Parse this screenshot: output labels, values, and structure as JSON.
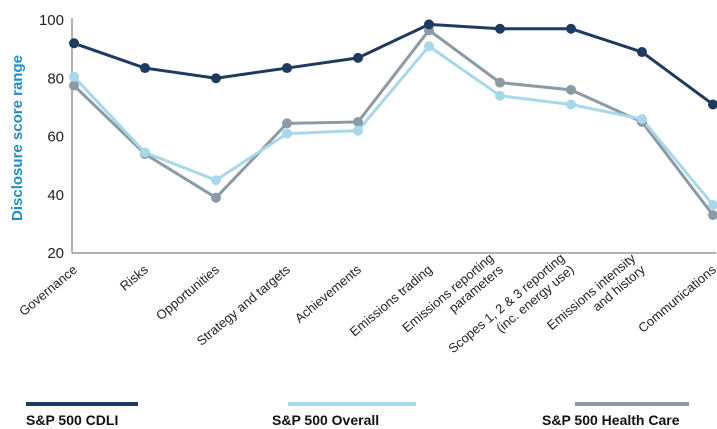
{
  "chart_data": {
    "type": "line",
    "ylabel": "Disclosure score range",
    "ylim": [
      20,
      100
    ],
    "yticks": [
      "20",
      "40",
      "60",
      "80",
      "100"
    ],
    "categories": [
      [
        "Governance"
      ],
      [
        "Risks"
      ],
      [
        "Opportunities"
      ],
      [
        "Strategy and targets"
      ],
      [
        "Achievements"
      ],
      [
        "Emissions trading"
      ],
      [
        "Emissions reporting",
        "parameters"
      ],
      [
        "Scopes 1, 2 & 3 reporting",
        "(inc. energy use)"
      ],
      [
        "Emissions intensity",
        "and history"
      ],
      [
        "Communications"
      ]
    ],
    "series": [
      {
        "name": "S&P 500 CDLI",
        "color": "#1f3a5f",
        "values": [
          92,
          83.5,
          80,
          83.5,
          87,
          98.5,
          97,
          97,
          89,
          71
        ]
      },
      {
        "name": "S&P 500 Overall",
        "color": "#a8d8ea",
        "values": [
          80.5,
          54.5,
          45,
          61,
          62,
          91,
          74,
          71,
          66,
          36.5
        ]
      },
      {
        "name": "S&P 500 Health Care",
        "color": "#8c9aa6",
        "values": [
          77.5,
          54,
          39,
          64.5,
          65,
          96.5,
          78.5,
          76,
          65,
          33
        ]
      }
    ],
    "grid": false,
    "legend": "bottom"
  }
}
